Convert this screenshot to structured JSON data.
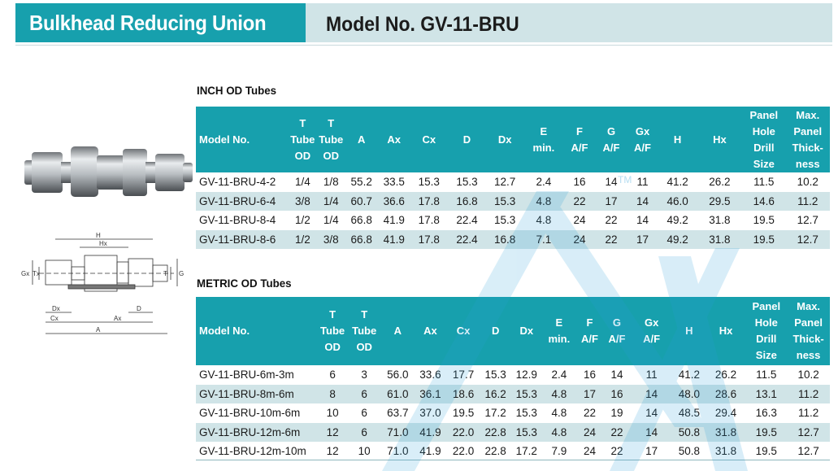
{
  "header": {
    "title": "Bulkhead Reducing Union",
    "model": "Model No. GV-11-BRU"
  },
  "inch_section": {
    "title": "INCH OD Tubes",
    "columns": [
      [
        "Model No."
      ],
      [
        "T",
        "Tube",
        "OD"
      ],
      [
        "T",
        "Tube",
        "OD"
      ],
      [
        "A"
      ],
      [
        "Ax"
      ],
      [
        "Cx"
      ],
      [
        "D"
      ],
      [
        "Dx"
      ],
      [
        "E",
        "min."
      ],
      [
        "F",
        "A/F"
      ],
      [
        "G",
        "A/F"
      ],
      [
        "Gx",
        "A/F"
      ],
      [
        "H"
      ],
      [
        "Hx"
      ],
      [
        "Panel",
        "Hole",
        "Drill",
        "Size"
      ],
      [
        "Max.",
        "Panel",
        "Thick-",
        "ness"
      ]
    ],
    "rows": [
      [
        "GV-11-BRU-4-2",
        "1/4",
        "1/8",
        "55.2",
        "33.5",
        "15.3",
        "15.3",
        "12.7",
        "2.4",
        "16",
        "14",
        "11",
        "41.2",
        "26.2",
        "11.5",
        "10.2"
      ],
      [
        "GV-11-BRU-6-4",
        "3/8",
        "1/4",
        "60.7",
        "36.6",
        "17.8",
        "16.8",
        "15.3",
        "4.8",
        "22",
        "17",
        "14",
        "46.0",
        "29.5",
        "14.6",
        "11.2"
      ],
      [
        "GV-11-BRU-8-4",
        "1/2",
        "1/4",
        "66.8",
        "41.9",
        "17.8",
        "22.4",
        "15.3",
        "4.8",
        "24",
        "22",
        "14",
        "49.2",
        "31.8",
        "19.5",
        "12.7"
      ],
      [
        "GV-11-BRU-8-6",
        "1/2",
        "3/8",
        "66.8",
        "41.9",
        "17.8",
        "22.4",
        "16.8",
        "7.1",
        "24",
        "22",
        "17",
        "49.2",
        "31.8",
        "19.5",
        "12.7"
      ]
    ]
  },
  "metric_section": {
    "title": "METRIC OD Tubes",
    "columns": [
      [
        "Model No."
      ],
      [
        "T",
        "Tube",
        "OD"
      ],
      [
        "T",
        "Tube",
        "OD"
      ],
      [
        "A"
      ],
      [
        "Ax"
      ],
      [
        "Cx"
      ],
      [
        "D"
      ],
      [
        "Dx"
      ],
      [
        "E",
        "min."
      ],
      [
        "F",
        "A/F"
      ],
      [
        "G",
        "A/F"
      ],
      [
        "Gx",
        "A/F"
      ],
      [
        "H"
      ],
      [
        "Hx"
      ],
      [
        "Panel",
        "Hole",
        "Drill",
        "Size"
      ],
      [
        "Max.",
        "Panel",
        "Thick-",
        "ness"
      ]
    ],
    "rows": [
      [
        "GV-11-BRU-6m-3m",
        "6",
        "3",
        "56.0",
        "33.6",
        "17.7",
        "15.3",
        "12.9",
        "2.4",
        "16",
        "14",
        "11",
        "41.2",
        "26.2",
        "11.5",
        "10.2"
      ],
      [
        "GV-11-BRU-8m-6m",
        "8",
        "6",
        "61.0",
        "36.1",
        "18.6",
        "16.2",
        "15.3",
        "4.8",
        "17",
        "16",
        "14",
        "48.0",
        "28.6",
        "13.1",
        "11.2"
      ],
      [
        "GV-11-BRU-10m-6m",
        "10",
        "6",
        "63.7",
        "37.0",
        "19.5",
        "17.2",
        "15.3",
        "4.8",
        "22",
        "19",
        "14",
        "48.5",
        "29.4",
        "16.3",
        "11.2"
      ],
      [
        "GV-11-BRU-12m-6m",
        "12",
        "6",
        "71.0",
        "41.9",
        "22.0",
        "22.8",
        "15.3",
        "4.8",
        "24",
        "22",
        "14",
        "50.8",
        "31.8",
        "19.5",
        "12.7"
      ],
      [
        "GV-11-BRU-12m-10m",
        "12",
        "10",
        "71.0",
        "41.9",
        "22.0",
        "22.8",
        "17.2",
        "7.9",
        "24",
        "22",
        "17",
        "50.8",
        "31.8",
        "19.5",
        "12.7"
      ]
    ]
  },
  "diagram": {
    "labels": [
      "H",
      "Hx",
      "Gx",
      "Tx",
      "T",
      "G",
      "Dx",
      "D",
      "Cx",
      "Ax",
      "A"
    ]
  },
  "colors": {
    "accent": "#17a0ad",
    "band": "#d0e4e7",
    "watermark": "#2b9fd9"
  },
  "icons": [
    "product-photo",
    "dimension-diagram",
    "watermark-logo"
  ]
}
